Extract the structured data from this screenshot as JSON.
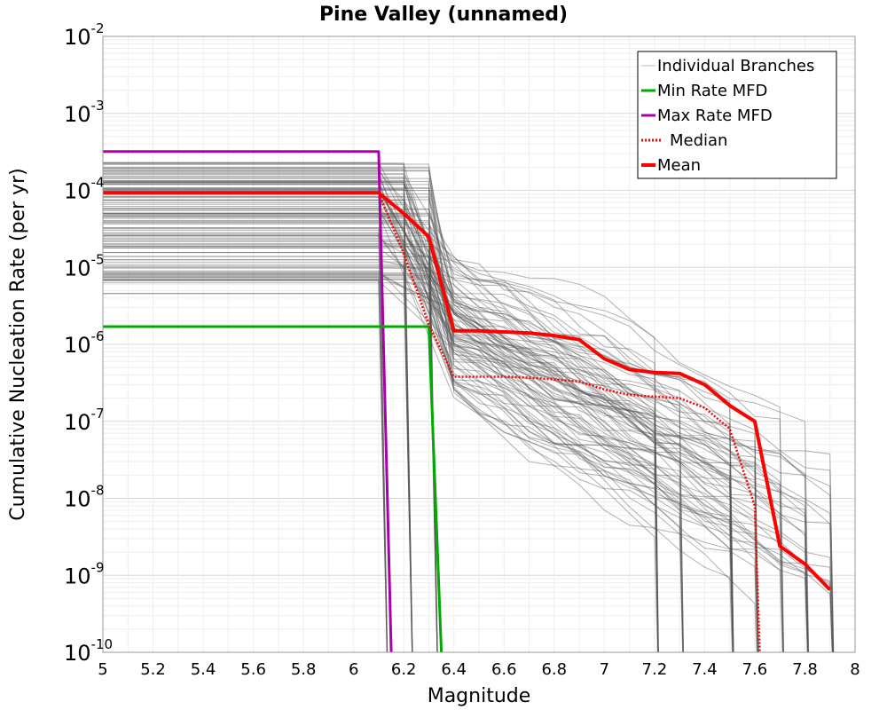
{
  "chart_data": {
    "type": "line",
    "title": "Pine Valley (unnamed)",
    "xlabel": "Magnitude",
    "ylabel": "Cumulative Nucleation Rate (per yr)",
    "xlim": [
      5,
      8
    ],
    "ylim_log10": [
      -10,
      -2
    ],
    "y_scale": "log",
    "grid": true,
    "legend_position": "top-right",
    "x_ticks": [
      "5",
      "5.2",
      "5.4",
      "5.6",
      "5.8",
      "6",
      "6.2",
      "6.4",
      "6.6",
      "6.8",
      "7",
      "7.2",
      "7.4",
      "7.6",
      "7.8",
      "8"
    ],
    "y_ticks": [
      {
        "base": "10",
        "exp": "-10",
        "log": -10
      },
      {
        "base": "10",
        "exp": "-9",
        "log": -9
      },
      {
        "base": "10",
        "exp": "-8",
        "log": -8
      },
      {
        "base": "10",
        "exp": "-7",
        "log": -7
      },
      {
        "base": "10",
        "exp": "-6",
        "log": -6
      },
      {
        "base": "10",
        "exp": "-5",
        "log": -5
      },
      {
        "base": "10",
        "exp": "-4",
        "log": -4
      },
      {
        "base": "10",
        "exp": "-3",
        "log": -3
      },
      {
        "base": "10",
        "exp": "-2",
        "log": -2
      }
    ],
    "legend": [
      {
        "label": "Individual Branches",
        "color": "#bbbbbb",
        "style": "solid-thin"
      },
      {
        "label": "Min Rate MFD",
        "color": "#00aa00",
        "style": "solid"
      },
      {
        "label": "Max Rate MFD",
        "color": "#aa00aa",
        "style": "solid"
      },
      {
        "label": "Median",
        "color": "#ff0000",
        "style": "dotted"
      },
      {
        "label": "Mean",
        "color": "#ff0000",
        "style": "solid-thick"
      }
    ],
    "series": [
      {
        "name": "Max Rate MFD",
        "color": "#aa00aa",
        "x": [
          5.0,
          6.1,
          6.15
        ],
        "y": [
          0.00032,
          0.00032,
          1e-10
        ]
      },
      {
        "name": "Min Rate MFD",
        "color": "#00aa00",
        "x": [
          5.0,
          6.3,
          6.35
        ],
        "y": [
          1.7e-06,
          1.7e-06,
          1e-10
        ]
      },
      {
        "name": "Median",
        "color": "#ff0000",
        "x": [
          5.0,
          6.1,
          6.2,
          6.3,
          6.4,
          6.5,
          6.6,
          6.7,
          6.8,
          6.9,
          7.0,
          7.1,
          7.2,
          7.3,
          7.4,
          7.5,
          7.6,
          7.62
        ],
        "y": [
          9.3e-05,
          9.3e-05,
          1.5e-05,
          1.8e-06,
          3.8e-07,
          3.8e-07,
          3.8e-07,
          3.7e-07,
          3.5e-07,
          3.3e-07,
          2.6e-07,
          2.2e-07,
          2.1e-07,
          2e-07,
          1.5e-07,
          8e-08,
          8e-09,
          1e-10
        ]
      },
      {
        "name": "Mean",
        "color": "#ff0000",
        "x": [
          5.0,
          6.1,
          6.2,
          6.3,
          6.4,
          6.5,
          6.6,
          6.7,
          6.8,
          6.9,
          7.0,
          7.1,
          7.2,
          7.3,
          7.4,
          7.5,
          7.6,
          7.7,
          7.8,
          7.9
        ],
        "y": [
          9.3e-05,
          9.3e-05,
          5e-05,
          2.5e-05,
          1.5e-06,
          1.5e-06,
          1.45e-06,
          1.4e-06,
          1.3e-06,
          1.15e-06,
          6.5e-07,
          4.7e-07,
          4.3e-07,
          4.2e-07,
          3e-07,
          1.6e-07,
          1e-07,
          2.4e-09,
          1.4e-09,
          6.5e-10
        ]
      }
    ],
    "branches": {
      "count": 120,
      "description": "Individual branch MFD realizations",
      "plateau_range": [
        2.5e-06,
        0.00023
      ],
      "first_drop_magnitudes": [
        6.1,
        6.2,
        6.3
      ],
      "tail_range_at_6_4": [
        2e-07,
        1.5e-05
      ],
      "final_drop_magnitudes": [
        7.2,
        7.3,
        7.5,
        7.6,
        7.7,
        7.8,
        7.9
      ]
    }
  }
}
